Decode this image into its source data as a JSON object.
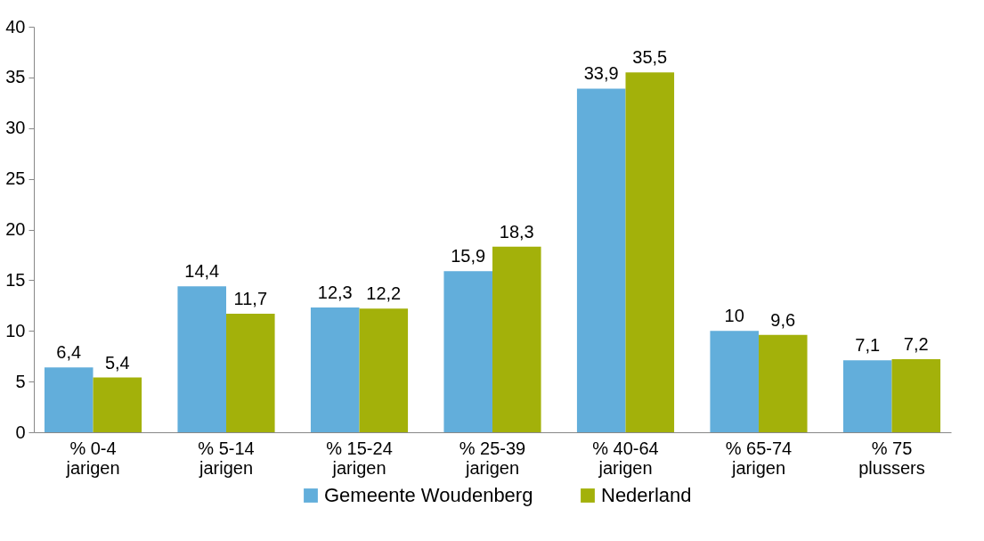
{
  "chart_data": {
    "type": "bar",
    "categories": [
      "% 0-4 jarigen",
      "% 5-14 jarigen",
      "%  15-24 jarigen",
      "% 25-39 jarigen",
      "% 40-64 jarigen",
      "% 65-74 jarigen",
      "% 75 plussers"
    ],
    "series": [
      {
        "name": "Gemeente Woudenberg",
        "color": "#62aedb",
        "values": [
          6.4,
          14.4,
          12.3,
          15.9,
          33.9,
          10,
          7.1
        ],
        "value_labels": [
          "6,4",
          "14,4",
          "12,3",
          "15,9",
          "33,9",
          "10",
          "7,1"
        ]
      },
      {
        "name": "Nederland",
        "color": "#a3b10a",
        "values": [
          5.4,
          11.7,
          12.2,
          18.3,
          35.5,
          9.6,
          7.2
        ],
        "value_labels": [
          "5,4",
          "11,7",
          "12,2",
          "18,3",
          "35,5",
          "9,6",
          "7,2"
        ]
      }
    ],
    "ylim": [
      0,
      40
    ],
    "yticks": [
      0,
      5,
      10,
      15,
      20,
      25,
      30,
      35,
      40
    ],
    "grid": false,
    "legend": "bottom"
  }
}
